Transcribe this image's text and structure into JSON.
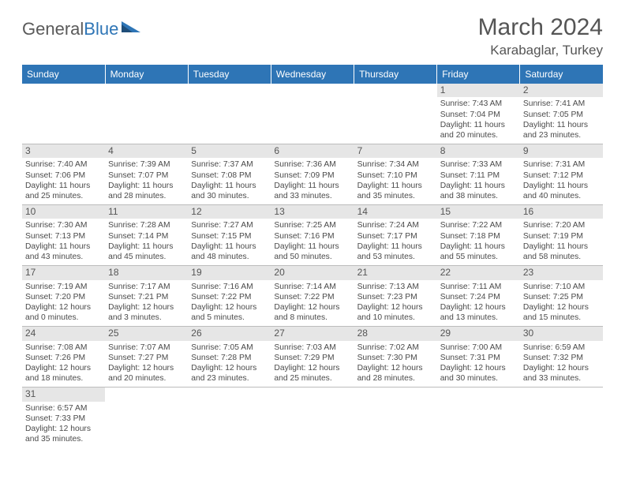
{
  "logo": {
    "general": "General",
    "blue": "Blue"
  },
  "title": "March 2024",
  "location": "Karabaglar, Turkey",
  "colors": {
    "header_bg": "#2e75b6",
    "header_fg": "#ffffff",
    "daynum_bg": "#e6e6e6",
    "text": "#4a4a4a",
    "border": "#bcbcbc"
  },
  "weekdays": [
    "Sunday",
    "Monday",
    "Tuesday",
    "Wednesday",
    "Thursday",
    "Friday",
    "Saturday"
  ],
  "weeks": [
    [
      {
        "n": "",
        "sr": "",
        "ss": "",
        "dl": ""
      },
      {
        "n": "",
        "sr": "",
        "ss": "",
        "dl": ""
      },
      {
        "n": "",
        "sr": "",
        "ss": "",
        "dl": ""
      },
      {
        "n": "",
        "sr": "",
        "ss": "",
        "dl": ""
      },
      {
        "n": "",
        "sr": "",
        "ss": "",
        "dl": ""
      },
      {
        "n": "1",
        "sr": "Sunrise: 7:43 AM",
        "ss": "Sunset: 7:04 PM",
        "dl": "Daylight: 11 hours and 20 minutes."
      },
      {
        "n": "2",
        "sr": "Sunrise: 7:41 AM",
        "ss": "Sunset: 7:05 PM",
        "dl": "Daylight: 11 hours and 23 minutes."
      }
    ],
    [
      {
        "n": "3",
        "sr": "Sunrise: 7:40 AM",
        "ss": "Sunset: 7:06 PM",
        "dl": "Daylight: 11 hours and 25 minutes."
      },
      {
        "n": "4",
        "sr": "Sunrise: 7:39 AM",
        "ss": "Sunset: 7:07 PM",
        "dl": "Daylight: 11 hours and 28 minutes."
      },
      {
        "n": "5",
        "sr": "Sunrise: 7:37 AM",
        "ss": "Sunset: 7:08 PM",
        "dl": "Daylight: 11 hours and 30 minutes."
      },
      {
        "n": "6",
        "sr": "Sunrise: 7:36 AM",
        "ss": "Sunset: 7:09 PM",
        "dl": "Daylight: 11 hours and 33 minutes."
      },
      {
        "n": "7",
        "sr": "Sunrise: 7:34 AM",
        "ss": "Sunset: 7:10 PM",
        "dl": "Daylight: 11 hours and 35 minutes."
      },
      {
        "n": "8",
        "sr": "Sunrise: 7:33 AM",
        "ss": "Sunset: 7:11 PM",
        "dl": "Daylight: 11 hours and 38 minutes."
      },
      {
        "n": "9",
        "sr": "Sunrise: 7:31 AM",
        "ss": "Sunset: 7:12 PM",
        "dl": "Daylight: 11 hours and 40 minutes."
      }
    ],
    [
      {
        "n": "10",
        "sr": "Sunrise: 7:30 AM",
        "ss": "Sunset: 7:13 PM",
        "dl": "Daylight: 11 hours and 43 minutes."
      },
      {
        "n": "11",
        "sr": "Sunrise: 7:28 AM",
        "ss": "Sunset: 7:14 PM",
        "dl": "Daylight: 11 hours and 45 minutes."
      },
      {
        "n": "12",
        "sr": "Sunrise: 7:27 AM",
        "ss": "Sunset: 7:15 PM",
        "dl": "Daylight: 11 hours and 48 minutes."
      },
      {
        "n": "13",
        "sr": "Sunrise: 7:25 AM",
        "ss": "Sunset: 7:16 PM",
        "dl": "Daylight: 11 hours and 50 minutes."
      },
      {
        "n": "14",
        "sr": "Sunrise: 7:24 AM",
        "ss": "Sunset: 7:17 PM",
        "dl": "Daylight: 11 hours and 53 minutes."
      },
      {
        "n": "15",
        "sr": "Sunrise: 7:22 AM",
        "ss": "Sunset: 7:18 PM",
        "dl": "Daylight: 11 hours and 55 minutes."
      },
      {
        "n": "16",
        "sr": "Sunrise: 7:20 AM",
        "ss": "Sunset: 7:19 PM",
        "dl": "Daylight: 11 hours and 58 minutes."
      }
    ],
    [
      {
        "n": "17",
        "sr": "Sunrise: 7:19 AM",
        "ss": "Sunset: 7:20 PM",
        "dl": "Daylight: 12 hours and 0 minutes."
      },
      {
        "n": "18",
        "sr": "Sunrise: 7:17 AM",
        "ss": "Sunset: 7:21 PM",
        "dl": "Daylight: 12 hours and 3 minutes."
      },
      {
        "n": "19",
        "sr": "Sunrise: 7:16 AM",
        "ss": "Sunset: 7:22 PM",
        "dl": "Daylight: 12 hours and 5 minutes."
      },
      {
        "n": "20",
        "sr": "Sunrise: 7:14 AM",
        "ss": "Sunset: 7:22 PM",
        "dl": "Daylight: 12 hours and 8 minutes."
      },
      {
        "n": "21",
        "sr": "Sunrise: 7:13 AM",
        "ss": "Sunset: 7:23 PM",
        "dl": "Daylight: 12 hours and 10 minutes."
      },
      {
        "n": "22",
        "sr": "Sunrise: 7:11 AM",
        "ss": "Sunset: 7:24 PM",
        "dl": "Daylight: 12 hours and 13 minutes."
      },
      {
        "n": "23",
        "sr": "Sunrise: 7:10 AM",
        "ss": "Sunset: 7:25 PM",
        "dl": "Daylight: 12 hours and 15 minutes."
      }
    ],
    [
      {
        "n": "24",
        "sr": "Sunrise: 7:08 AM",
        "ss": "Sunset: 7:26 PM",
        "dl": "Daylight: 12 hours and 18 minutes."
      },
      {
        "n": "25",
        "sr": "Sunrise: 7:07 AM",
        "ss": "Sunset: 7:27 PM",
        "dl": "Daylight: 12 hours and 20 minutes."
      },
      {
        "n": "26",
        "sr": "Sunrise: 7:05 AM",
        "ss": "Sunset: 7:28 PM",
        "dl": "Daylight: 12 hours and 23 minutes."
      },
      {
        "n": "27",
        "sr": "Sunrise: 7:03 AM",
        "ss": "Sunset: 7:29 PM",
        "dl": "Daylight: 12 hours and 25 minutes."
      },
      {
        "n": "28",
        "sr": "Sunrise: 7:02 AM",
        "ss": "Sunset: 7:30 PM",
        "dl": "Daylight: 12 hours and 28 minutes."
      },
      {
        "n": "29",
        "sr": "Sunrise: 7:00 AM",
        "ss": "Sunset: 7:31 PM",
        "dl": "Daylight: 12 hours and 30 minutes."
      },
      {
        "n": "30",
        "sr": "Sunrise: 6:59 AM",
        "ss": "Sunset: 7:32 PM",
        "dl": "Daylight: 12 hours and 33 minutes."
      }
    ],
    [
      {
        "n": "31",
        "sr": "Sunrise: 6:57 AM",
        "ss": "Sunset: 7:33 PM",
        "dl": "Daylight: 12 hours and 35 minutes."
      },
      {
        "n": "",
        "sr": "",
        "ss": "",
        "dl": ""
      },
      {
        "n": "",
        "sr": "",
        "ss": "",
        "dl": ""
      },
      {
        "n": "",
        "sr": "",
        "ss": "",
        "dl": ""
      },
      {
        "n": "",
        "sr": "",
        "ss": "",
        "dl": ""
      },
      {
        "n": "",
        "sr": "",
        "ss": "",
        "dl": ""
      },
      {
        "n": "",
        "sr": "",
        "ss": "",
        "dl": ""
      }
    ]
  ]
}
